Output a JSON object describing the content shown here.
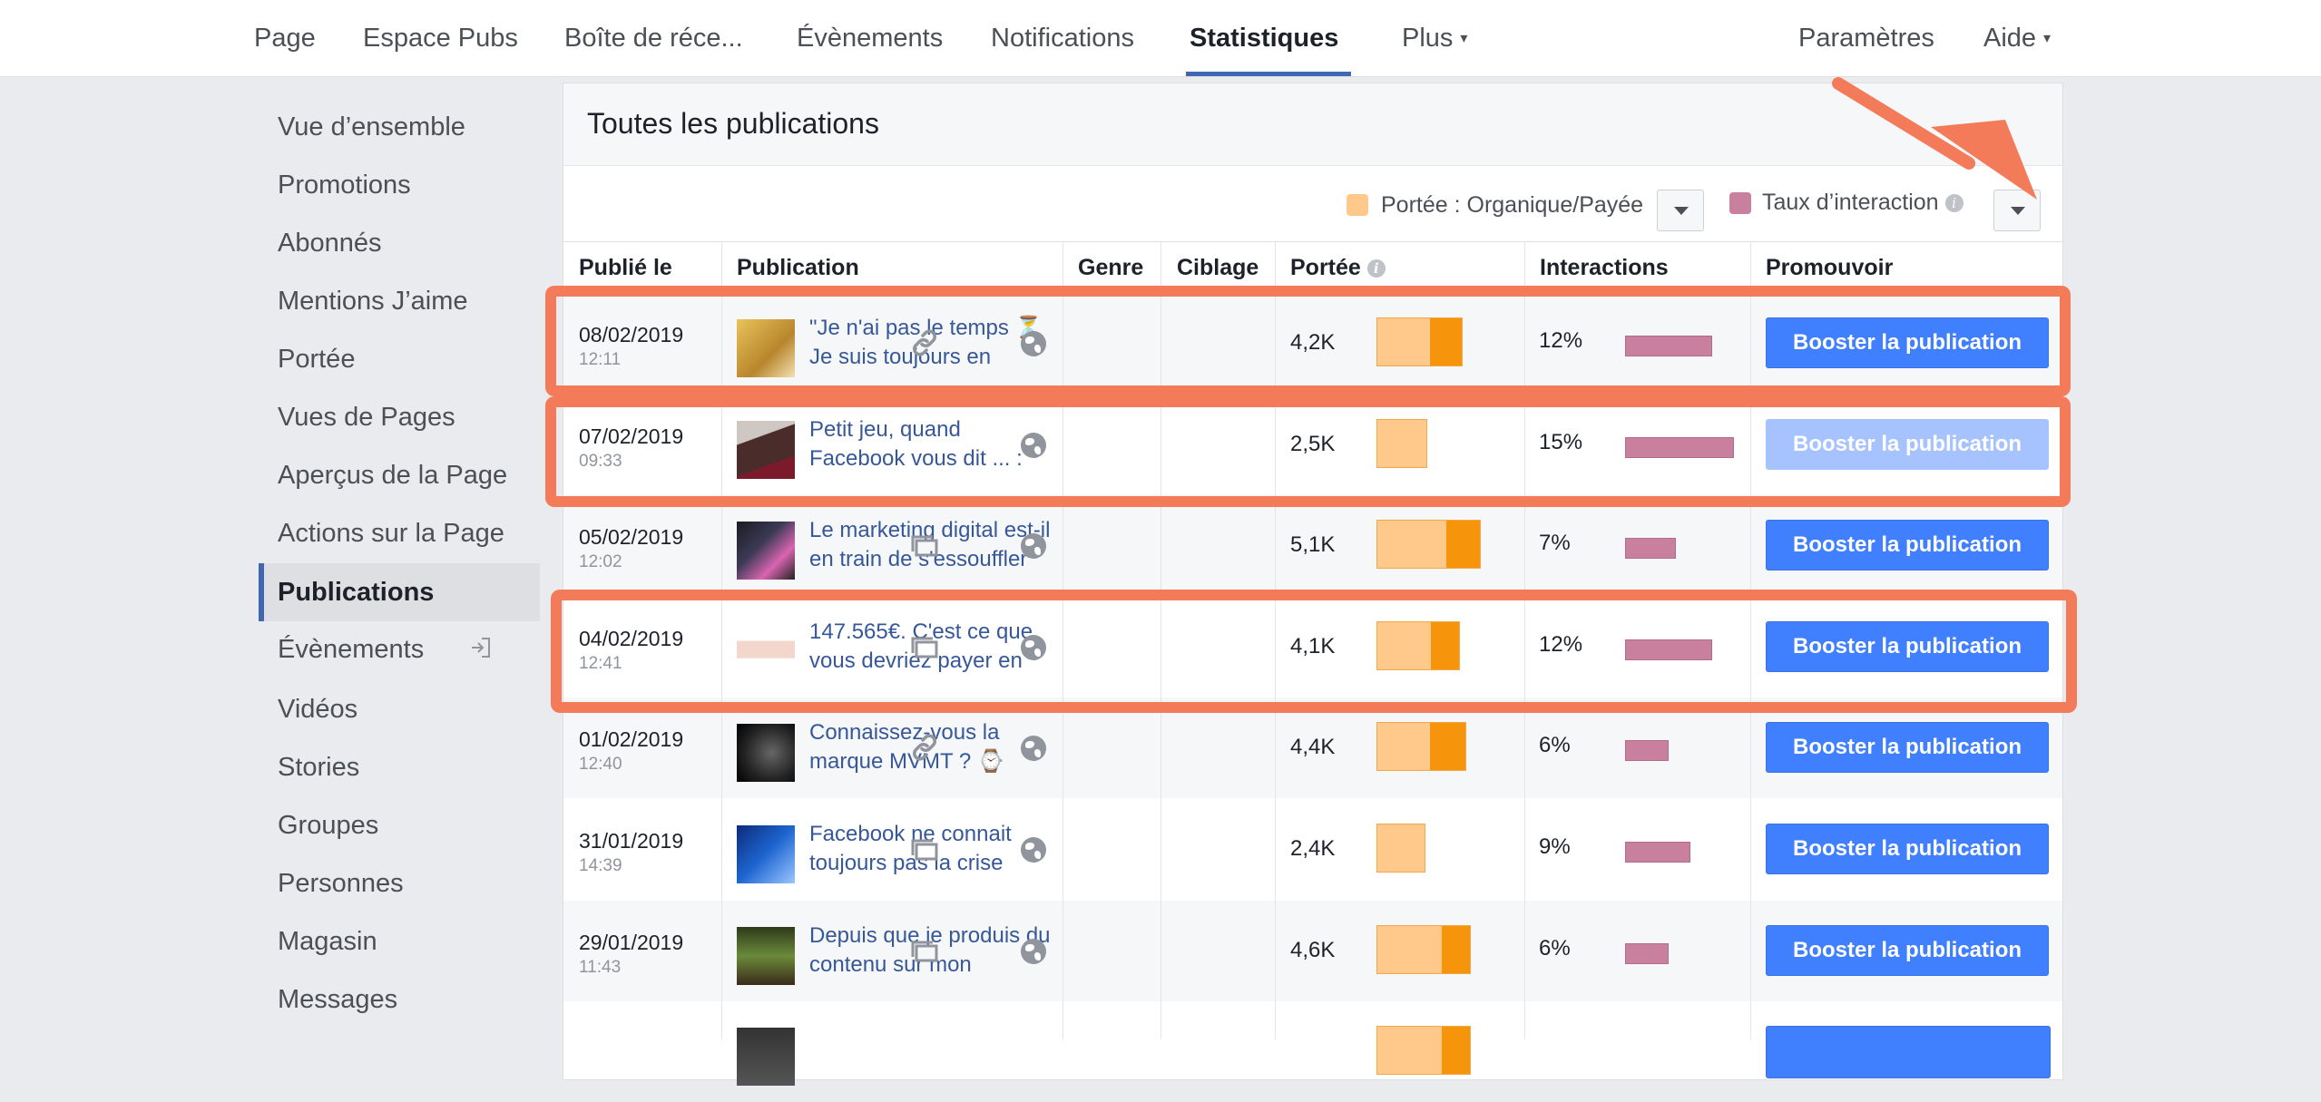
{
  "nav": {
    "items": [
      "Page",
      "Espace Pubs",
      "Boîte de réce...",
      "Évènements",
      "Notifications",
      "Statistiques",
      "Plus"
    ],
    "right": [
      "Paramètres",
      "Aide"
    ],
    "caret": "▾"
  },
  "sidebar": {
    "items": [
      "Vue d’ensemble",
      "Promotions",
      "Abonnés",
      "Mentions J’aime",
      "Portée",
      "Vues de Pages",
      "Aperçus de la Page",
      "Actions sur la Page",
      "Publications",
      "Évènements",
      "Vidéos",
      "Stories",
      "Groupes",
      "Personnes",
      "Magasin",
      "Messages"
    ],
    "active": "Publications"
  },
  "panel": {
    "title": "Toutes les publications",
    "legend_reach": "Portée : Organique/Payée",
    "legend_interaction": "Taux d’interaction",
    "info": "i"
  },
  "table": {
    "headers": [
      "Publié le",
      "Publication",
      "Genre",
      "Ciblage",
      "Portée",
      "Interactions",
      "Promouvoir"
    ],
    "rows": [
      {
        "date": "08/02/2019",
        "time": "12:11",
        "text": "\"Je n'ai pas le temps ⏳ Je suis toujours en",
        "genre": "link",
        "reach": "4,2K",
        "organic_share": 0.62,
        "paid_share": 0.38,
        "reach_value": 4.2,
        "rate": "12%",
        "rate_value": 12,
        "boost": "Booster la publication",
        "boost_enabled": true
      },
      {
        "date": "07/02/2019",
        "time": "09:33",
        "text": "Petit jeu, quand Facebook vous dit ... :",
        "genre": "",
        "reach": "2,5K",
        "organic_share": 1.0,
        "paid_share": 0.0,
        "reach_value": 2.5,
        "rate": "15%",
        "rate_value": 15,
        "boost": "Booster la publication",
        "boost_enabled": false
      },
      {
        "date": "05/02/2019",
        "time": "12:02",
        "text": "Le marketing digital est-il en train de s'essouffler",
        "genre": "photo",
        "reach": "5,1K",
        "organic_share": 0.67,
        "paid_share": 0.33,
        "reach_value": 5.1,
        "rate": "7%",
        "rate_value": 7,
        "boost": "Booster la publication",
        "boost_enabled": true
      },
      {
        "date": "04/02/2019",
        "time": "12:41",
        "text": "147.565€. C'est ce que vous devriez payer en",
        "genre": "photo",
        "reach": "4,1K",
        "organic_share": 0.65,
        "paid_share": 0.35,
        "reach_value": 4.1,
        "rate": "12%",
        "rate_value": 12,
        "boost": "Booster la publication",
        "boost_enabled": true
      },
      {
        "date": "01/02/2019",
        "time": "12:40",
        "text": "Connaissez-vous la marque MVMT ? ⌚",
        "genre": "link",
        "reach": "4,4K",
        "organic_share": 0.6,
        "paid_share": 0.4,
        "reach_value": 4.4,
        "rate": "6%",
        "rate_value": 6,
        "boost": "Booster la publication",
        "boost_enabled": true
      },
      {
        "date": "31/01/2019",
        "time": "14:39",
        "text": "Facebook ne connait toujours pas la crise",
        "genre": "photo",
        "reach": "2,4K",
        "organic_share": 1.0,
        "paid_share": 0.0,
        "reach_value": 2.4,
        "rate": "9%",
        "rate_value": 9,
        "boost": "Booster la publication",
        "boost_enabled": true
      },
      {
        "date": "29/01/2019",
        "time": "11:43",
        "text": "Depuis que je produis du contenu sur mon",
        "genre": "photo",
        "reach": "4,6K",
        "organic_share": 0.7,
        "paid_share": 0.3,
        "reach_value": 4.6,
        "rate": "6%",
        "rate_value": 6,
        "boost": "Booster la publication",
        "boost_enabled": true
      },
      {
        "date": "",
        "time": "",
        "text": "",
        "genre": "",
        "reach": "",
        "organic_share": 0.7,
        "paid_share": 0.3,
        "reach_value": 4.6,
        "rate": "",
        "rate_value": 0,
        "boost": "",
        "boost_enabled": true
      }
    ]
  },
  "colors": {
    "organic": "#fec98a",
    "paid": "#f6950c",
    "interaction": "#c9809f",
    "boost": "#4080ff",
    "annotation": "#f47b5a"
  }
}
